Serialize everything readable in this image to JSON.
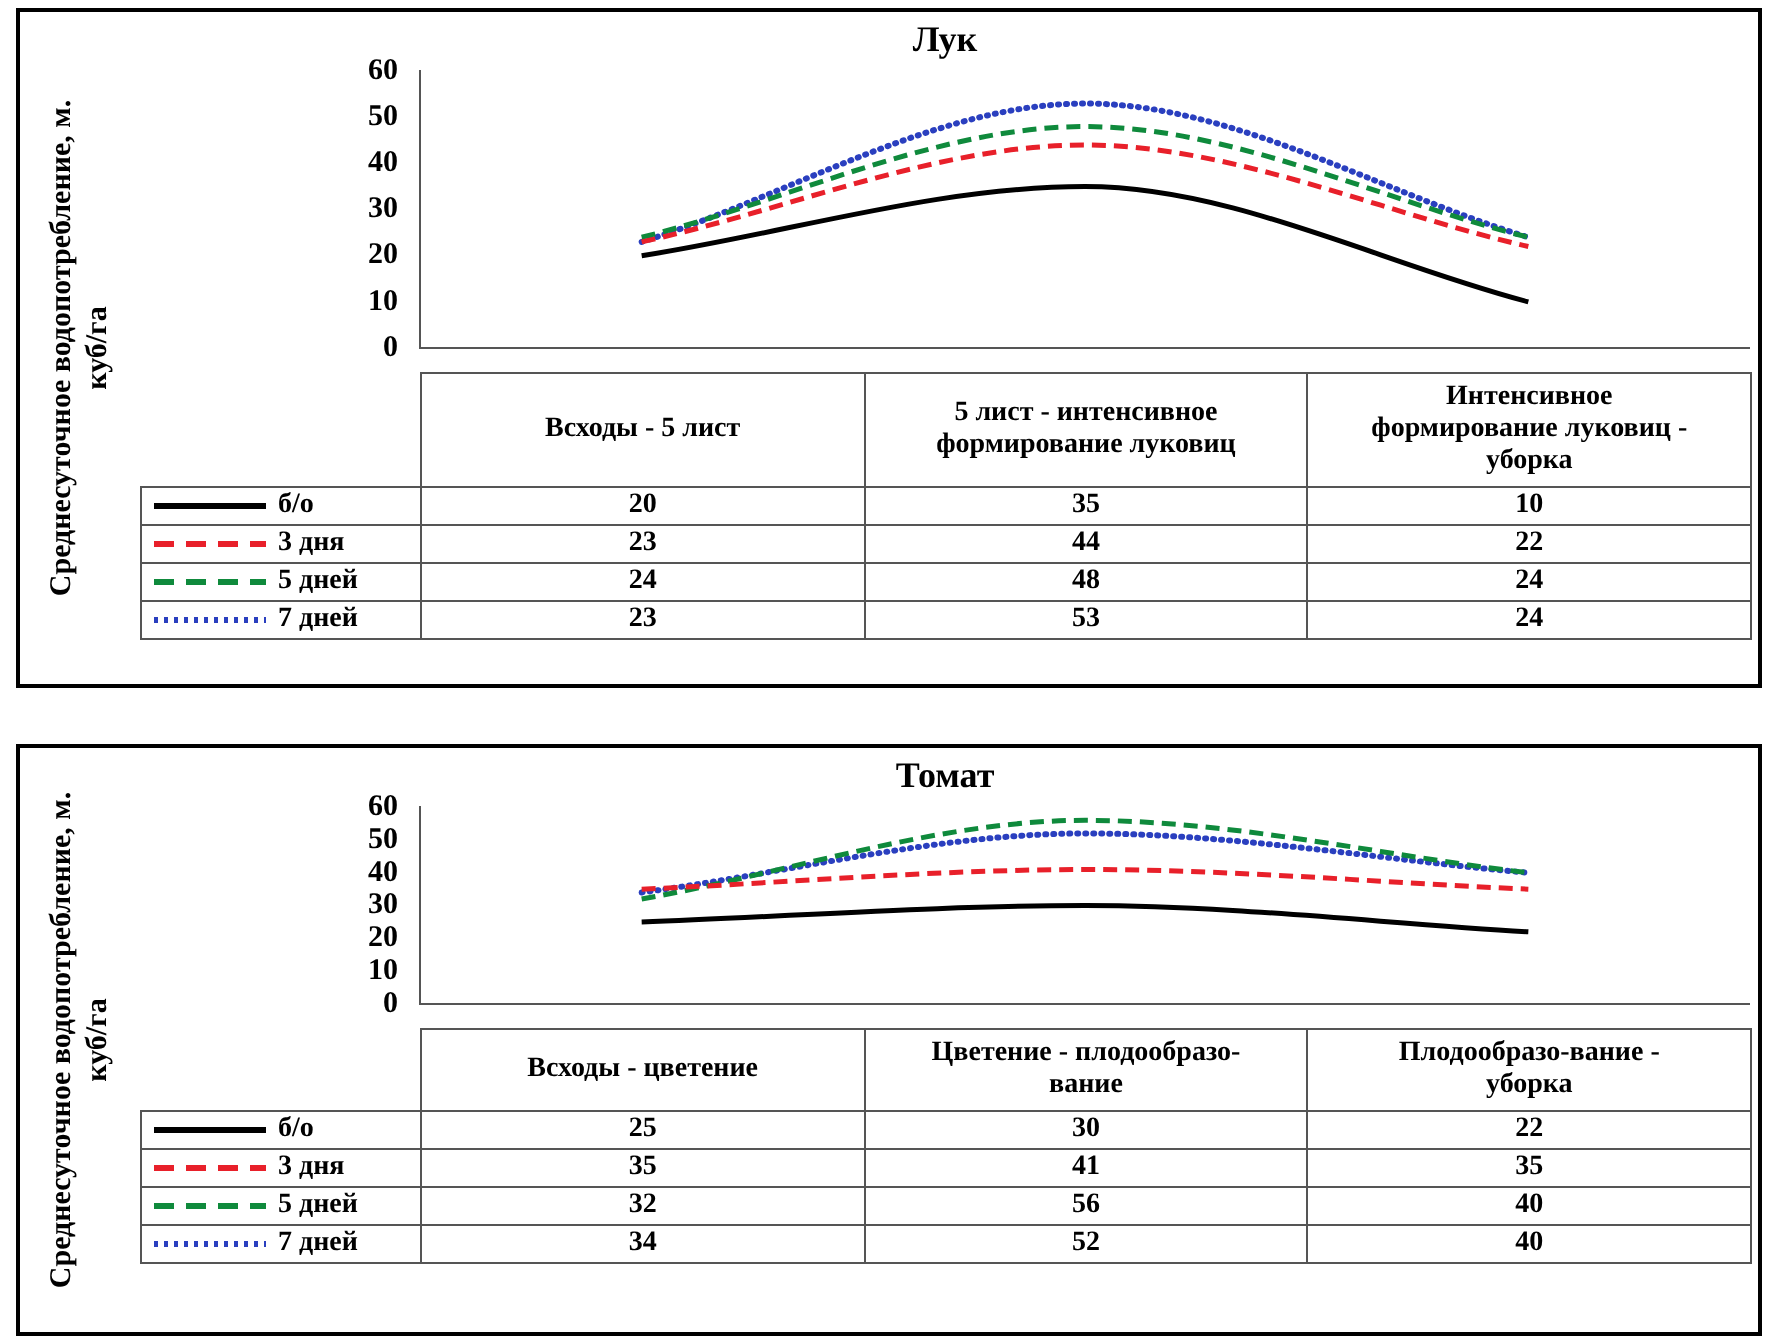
{
  "chart_data": [
    {
      "type": "line",
      "title": "Лук",
      "ylabel": "Среднесуточное водопотребление, м. куб/га",
      "categories": [
        "Всходы - 5 лист",
        "5 лист - интенсивное формирование луковиц",
        "Интенсивное формирование луковиц - уборка"
      ],
      "series": [
        {
          "name": "б/о",
          "color": "#000000",
          "line_style": "solid",
          "values": [
            20,
            35,
            10
          ]
        },
        {
          "name": "3 дня",
          "color": "#e8202a",
          "line_style": "dashed",
          "values": [
            23,
            44,
            22
          ]
        },
        {
          "name": "5 дней",
          "color": "#0f8a3c",
          "line_style": "dashed",
          "values": [
            24,
            48,
            24
          ]
        },
        {
          "name": "7 дней",
          "color": "#2a3fbf",
          "line_style": "dotted",
          "values": [
            23,
            53,
            24
          ]
        }
      ],
      "ylim": [
        0,
        60
      ],
      "yticks": [
        0,
        10,
        20,
        30,
        40,
        50,
        60
      ],
      "grid": false,
      "legend": "bottom",
      "data_labels": true
    },
    {
      "type": "line",
      "title": "Томат",
      "ylabel": "Среднесуточное водопотребление, м. куб/га",
      "categories": [
        "Всходы - цветение",
        "Цветение - плодообразо-вание",
        "Плодообразо-вание - уборка"
      ],
      "series": [
        {
          "name": "б/о",
          "color": "#000000",
          "line_style": "solid",
          "values": [
            25,
            30,
            22
          ]
        },
        {
          "name": "3 дня",
          "color": "#e8202a",
          "line_style": "dashed",
          "values": [
            35,
            41,
            35
          ]
        },
        {
          "name": "5 дней",
          "color": "#0f8a3c",
          "line_style": "dashed",
          "values": [
            32,
            56,
            40
          ]
        },
        {
          "name": "7 дней",
          "color": "#2a3fbf",
          "line_style": "dotted",
          "values": [
            34,
            52,
            40
          ]
        }
      ],
      "ylim": [
        0,
        60
      ],
      "yticks": [
        0,
        10,
        20,
        30,
        40,
        50,
        60
      ],
      "grid": false,
      "legend": "bottom",
      "data_labels": true
    }
  ]
}
